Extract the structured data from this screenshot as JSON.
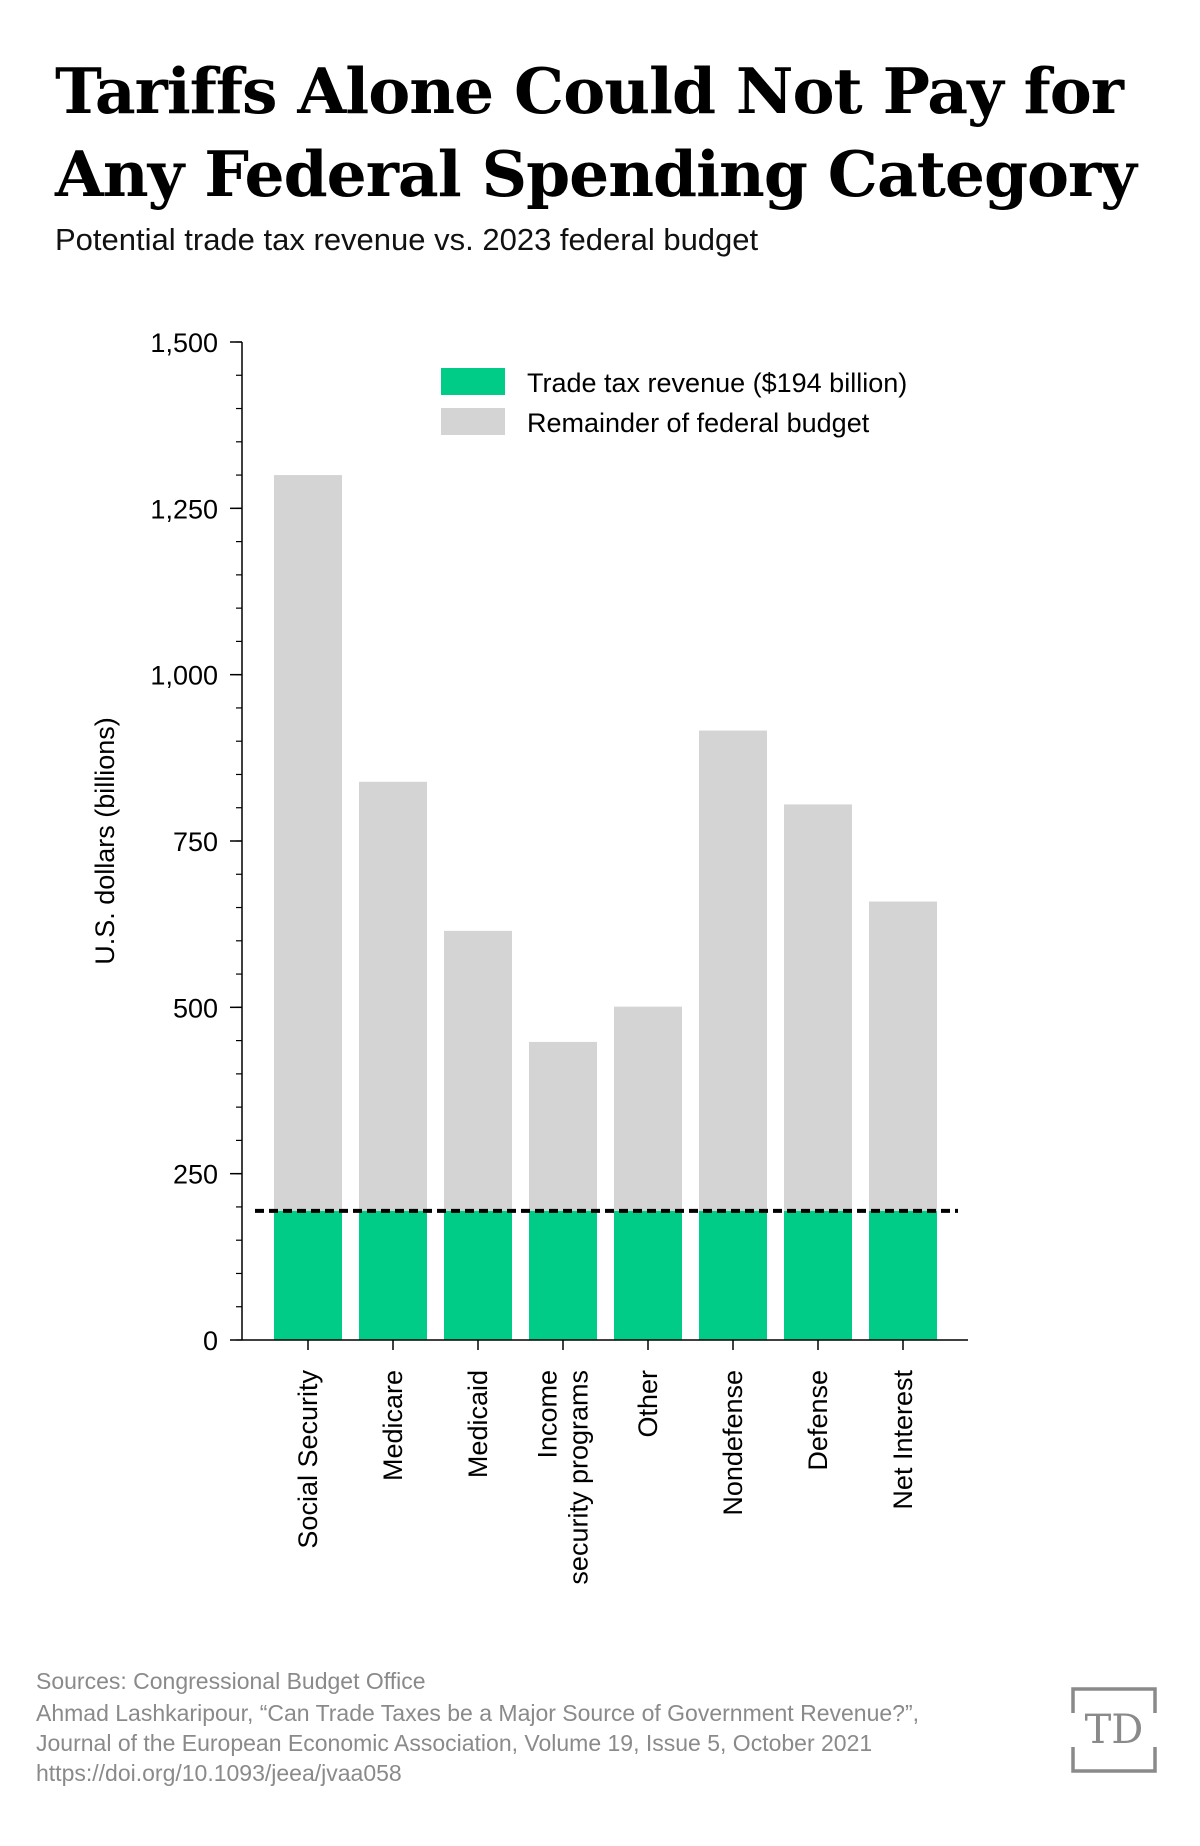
{
  "title_line1": "Tariffs Alone Could Not Pay for",
  "title_line2": "Any Federal Spending Category",
  "subtitle": "Potential trade tax revenue vs. 2023 federal budget",
  "chart_data": {
    "type": "bar",
    "stacked": true,
    "categories": [
      [
        "Social Security"
      ],
      [
        "Medicare"
      ],
      [
        "Medicaid"
      ],
      [
        "Income",
        "security programs"
      ],
      [
        "Other"
      ],
      [
        "Nondefense"
      ],
      [
        "Defense"
      ],
      [
        "Net Interest"
      ]
    ],
    "series": [
      {
        "name": "Trade tax revenue ($194 billion)",
        "color": "#00cc88",
        "values": [
          194,
          194,
          194,
          194,
          194,
          194,
          194,
          194
        ]
      },
      {
        "name": "Remainder of federal budget",
        "color": "#d4d4d4",
        "values": [
          1106,
          645,
          421,
          254,
          307,
          722,
          611,
          465
        ]
      }
    ],
    "totals": [
      1300,
      839,
      615,
      448,
      501,
      916,
      805,
      659
    ],
    "reference_line": {
      "value": 194,
      "style": "dashed",
      "color": "#000000"
    },
    "ylabel": "U.S. dollars (billions)",
    "xlabel": "",
    "ylim": [
      0,
      1500
    ],
    "yticks": [
      0,
      250,
      500,
      750,
      1000,
      1250,
      1500
    ],
    "ytick_labels": [
      "0",
      "250",
      "500",
      "750",
      "1,000",
      "1,250",
      "1,500"
    ],
    "minor_tick_step": 50,
    "legend_position": "top-right",
    "grid": false
  },
  "footer": {
    "sources": "Sources: Congressional Budget Office",
    "citation_line1": "Ahmad Lashkaripour, “Can Trade Taxes be a Major Source of Government Revenue?”,",
    "citation_line2": "Journal of the European Economic Association, Volume 19, Issue 5, October 2021",
    "citation_line3": "https://doi.org/10.1093/jeea/jvaa058"
  },
  "logo": {
    "text": "TD",
    "color": "#8a8a8a"
  }
}
